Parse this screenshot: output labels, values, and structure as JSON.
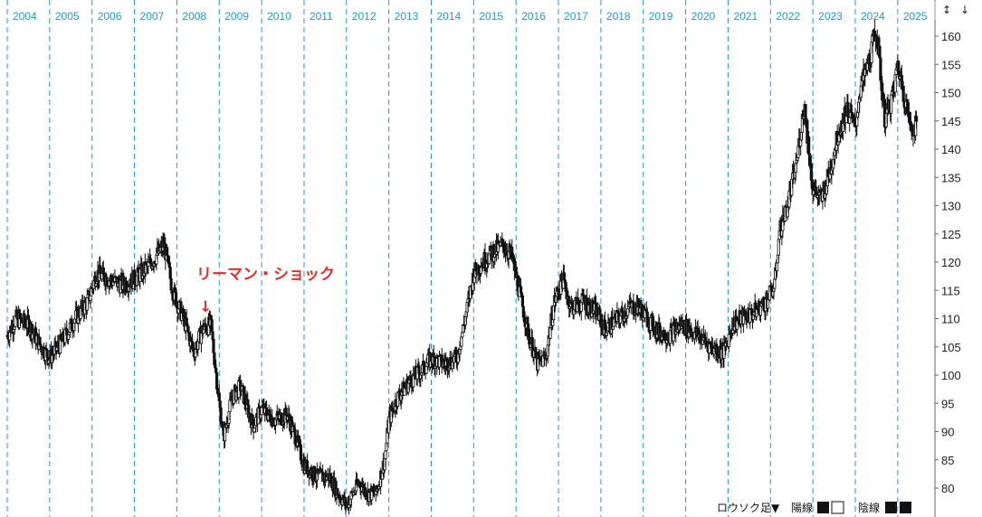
{
  "chart_data": {
    "type": "candlestick",
    "x_ticks": [
      "2004",
      "2005",
      "2006",
      "2007",
      "2008",
      "2009",
      "2010",
      "2011",
      "2012",
      "2013",
      "2014",
      "2015",
      "2016",
      "2017",
      "2018",
      "2019",
      "2020",
      "2021",
      "2022",
      "2023",
      "2024",
      "2025"
    ],
    "y_ticks": [
      80,
      85,
      90,
      95,
      100,
      105,
      110,
      115,
      120,
      125,
      130,
      135,
      140,
      145,
      150,
      155,
      160
    ],
    "ylim": [
      78,
      163
    ],
    "xlim": [
      2004.0,
      2025.5
    ],
    "grid": "vertical dashed per year",
    "series": [
      {
        "values_key": "approx close path (year, price)",
        "points": [
          [
            2004.0,
            107
          ],
          [
            2004.2,
            110
          ],
          [
            2004.5,
            109
          ],
          [
            2004.8,
            105
          ],
          [
            2005.0,
            103
          ],
          [
            2005.3,
            106
          ],
          [
            2005.6,
            110
          ],
          [
            2005.9,
            113
          ],
          [
            2006.1,
            118
          ],
          [
            2006.4,
            117
          ],
          [
            2006.7,
            116
          ],
          [
            2007.0,
            117
          ],
          [
            2007.3,
            119
          ],
          [
            2007.5,
            121
          ],
          [
            2007.7,
            123
          ],
          [
            2007.9,
            115
          ],
          [
            2008.2,
            109
          ],
          [
            2008.4,
            104
          ],
          [
            2008.6,
            108
          ],
          [
            2008.8,
            109
          ],
          [
            2009.0,
            95
          ],
          [
            2009.1,
            89
          ],
          [
            2009.3,
            96
          ],
          [
            2009.5,
            98
          ],
          [
            2009.8,
            91
          ],
          [
            2010.0,
            94
          ],
          [
            2010.3,
            92
          ],
          [
            2010.6,
            93
          ],
          [
            2010.8,
            89
          ],
          [
            2011.0,
            84
          ],
          [
            2011.3,
            82
          ],
          [
            2011.6,
            82
          ],
          [
            2011.8,
            79
          ],
          [
            2012.0,
            77
          ],
          [
            2012.3,
            81
          ],
          [
            2012.5,
            79
          ],
          [
            2012.7,
            79
          ],
          [
            2012.9,
            85
          ],
          [
            2013.0,
            92
          ],
          [
            2013.2,
            96
          ],
          [
            2013.5,
            99
          ],
          [
            2013.8,
            101
          ],
          [
            2014.0,
            103
          ],
          [
            2014.3,
            102
          ],
          [
            2014.6,
            103
          ],
          [
            2014.8,
            110
          ],
          [
            2015.0,
            118
          ],
          [
            2015.2,
            120
          ],
          [
            2015.5,
            122
          ],
          [
            2015.7,
            123
          ],
          [
            2015.9,
            121
          ],
          [
            2016.1,
            114
          ],
          [
            2016.3,
            107
          ],
          [
            2016.5,
            102
          ],
          [
            2016.7,
            103
          ],
          [
            2016.9,
            113
          ],
          [
            2017.1,
            117
          ],
          [
            2017.3,
            112
          ],
          [
            2017.6,
            113
          ],
          [
            2017.9,
            111
          ],
          [
            2018.1,
            108
          ],
          [
            2018.4,
            110
          ],
          [
            2018.7,
            112
          ],
          [
            2018.9,
            112
          ],
          [
            2019.1,
            110
          ],
          [
            2019.3,
            108
          ],
          [
            2019.6,
            107
          ],
          [
            2019.9,
            109
          ],
          [
            2020.1,
            108
          ],
          [
            2020.3,
            107
          ],
          [
            2020.6,
            105
          ],
          [
            2020.9,
            104
          ],
          [
            2021.1,
            109
          ],
          [
            2021.3,
            110
          ],
          [
            2021.6,
            111
          ],
          [
            2021.9,
            113
          ],
          [
            2022.1,
            116
          ],
          [
            2022.2,
            125
          ],
          [
            2022.4,
            130
          ],
          [
            2022.6,
            137
          ],
          [
            2022.8,
            148
          ],
          [
            2022.9,
            140
          ],
          [
            2023.0,
            133
          ],
          [
            2023.2,
            131
          ],
          [
            2023.4,
            136
          ],
          [
            2023.6,
            143
          ],
          [
            2023.8,
            147
          ],
          [
            2024.0,
            144
          ],
          [
            2024.1,
            150
          ],
          [
            2024.3,
            155
          ],
          [
            2024.5,
            161
          ],
          [
            2024.6,
            153
          ],
          [
            2024.7,
            145
          ],
          [
            2024.9,
            150
          ],
          [
            2025.0,
            155
          ],
          [
            2025.2,
            148
          ],
          [
            2025.3,
            144
          ],
          [
            2025.45,
            144
          ]
        ]
      }
    ],
    "annotations": [
      {
        "text": "リーマン・ショック",
        "arrow": "↓",
        "x": 2008.7
      }
    ]
  },
  "legend": {
    "candle_label": "ロウソク足▼",
    "up_label": "陽線",
    "down_label": "陰線"
  },
  "controls": {
    "scroll_up": "↕",
    "scroll_down": "↓"
  },
  "colors": {
    "grid": "#1e9bd7",
    "candle": "#111111",
    "annotation": "#e0302a",
    "text": "#222222"
  }
}
